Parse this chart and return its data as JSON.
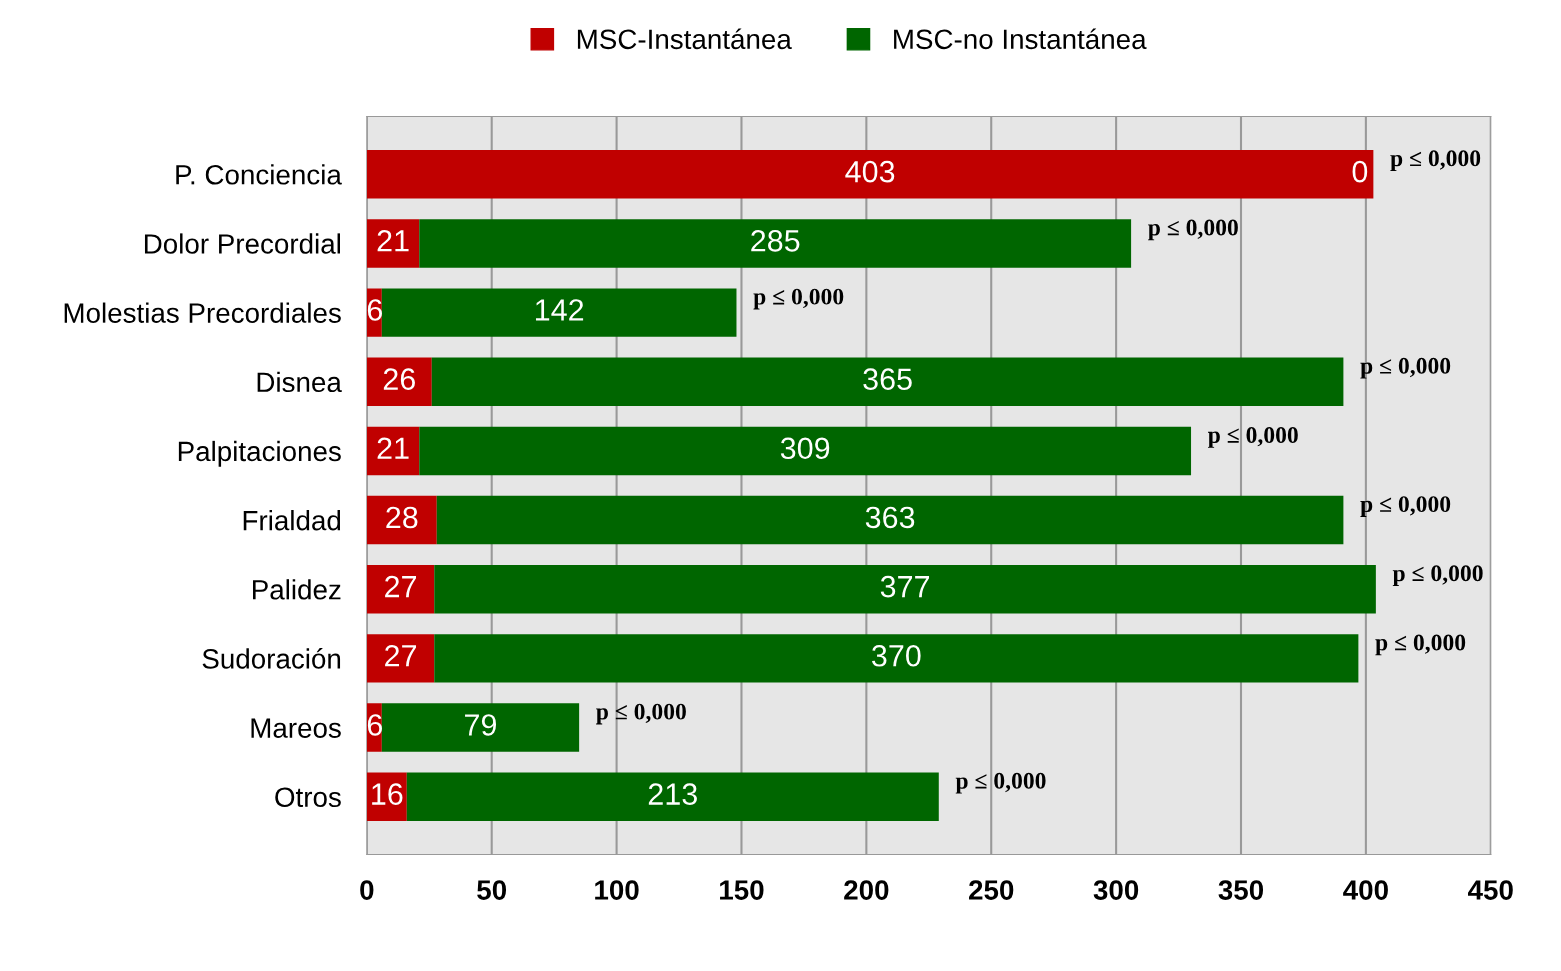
{
  "chart_data": {
    "type": "bar",
    "orientation": "horizontal",
    "stacked": true,
    "categories": [
      "P. Conciencia",
      "Dolor Precordial",
      "Molestias Precordiales",
      "Disnea",
      "Palpitaciones",
      "Frialdad",
      "Palidez",
      "Sudoración",
      "Mareos",
      "Otros"
    ],
    "series": [
      {
        "name": "MSC-Instantánea",
        "color": "#c00000",
        "values": [
          403,
          21,
          6,
          26,
          21,
          28,
          27,
          27,
          6,
          16
        ]
      },
      {
        "name": "MSC-no Instantánea",
        "color": "#006600",
        "values": [
          0,
          285,
          142,
          365,
          309,
          363,
          377,
          370,
          79,
          213
        ]
      }
    ],
    "xlim": [
      0,
      450
    ],
    "xticks": [
      0,
      50,
      100,
      150,
      200,
      250,
      300,
      350,
      400,
      450
    ],
    "grid": "x",
    "legend": "top",
    "data_labels": true,
    "annotations": [
      {
        "text": "p ≤ 0,000",
        "x": 403,
        "y": "P. Conciencia"
      },
      {
        "text": "p ≤ 0,000",
        "x": 306,
        "y": "Dolor Precordial"
      },
      {
        "text": "p ≤ 0,000",
        "x": 148,
        "y": "Molestias Precordiales"
      },
      {
        "text": "p ≤ 0,000",
        "x": 391,
        "y": "Disnea"
      },
      {
        "text": "p ≤ 0,000",
        "x": 330,
        "y": "Palpitaciones"
      },
      {
        "text": "p ≤ 0,000",
        "x": 391,
        "y": "Frialdad"
      },
      {
        "text": "p ≤ 0,000",
        "x": 404,
        "y": "Palidez"
      },
      {
        "text": "p ≤ 0,000",
        "x": 397,
        "y": "Sudoración"
      },
      {
        "text": "p ≤ 0,000",
        "x": 85,
        "y": "Mareos"
      },
      {
        "text": "p ≤ 0,000",
        "x": 229,
        "y": "Otros"
      }
    ]
  }
}
